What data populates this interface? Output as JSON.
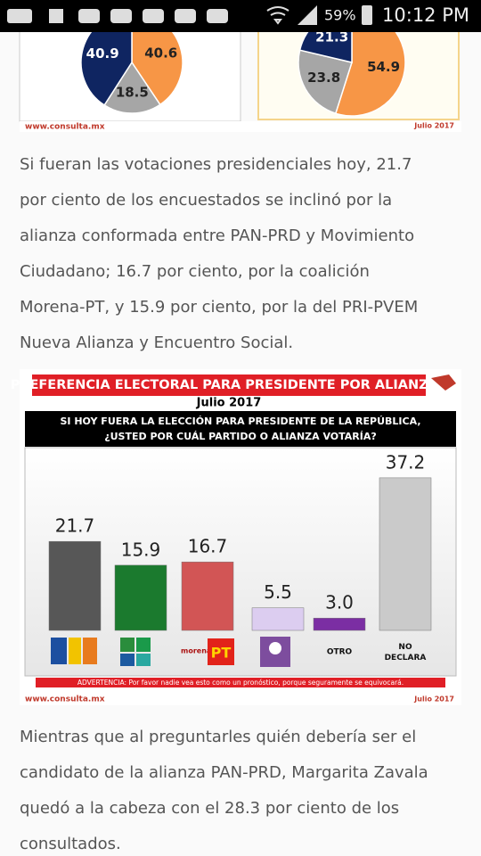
{
  "status_bar": {
    "battery": "59%",
    "time": "10:12 PM"
  },
  "top_image": {
    "pies": [
      {
        "values": [
          40.6,
          18.5,
          40.9
        ],
        "colors": [
          "#f79646",
          "#a6a6a6",
          "#0f2561"
        ]
      },
      {
        "values": [
          54.9,
          23.8,
          21.3
        ],
        "colors": [
          "#f79646",
          "#a6a6a6",
          "#0f2561"
        ]
      }
    ],
    "source": "www.consulta.mx",
    "date": "Julio 2017"
  },
  "paragraphs": [
    [
      "Si fueran las votaciones presidenciales hoy, 21.7",
      "por ciento de los encuestados se inclinó por la",
      "alianza conformada entre PAN-PRD y Movimiento",
      "Ciudadano; 16.7 por ciento, por la coalición",
      "Morena-PT, y 15.9 por ciento, por la del PRI-PVEM",
      "Nueva Alianza y Encuentro Social."
    ],
    [
      "Mientras que al preguntarles quién debería ser el",
      "candidato de la alianza PAN-PRD, Margarita Zavala",
      "quedó a la cabeza con el 28.3 por ciento de los",
      "consultados."
    ]
  ],
  "chart_data": {
    "type": "bar",
    "title": "PREFERENCIA ELECTORAL PARA PRESIDENTE POR ALIANZAS",
    "subtitle": "Julio 2017",
    "question": [
      "SI HOY FUERA LA ELECCIÓN PARA PRESIDENTE DE LA REPÚBLICA,",
      "¿USTED POR CUÁL PARTIDO O ALIANZA VOTARÍA?"
    ],
    "categories": [
      null,
      null,
      null,
      null,
      "OTRO",
      "NO DECLARA"
    ],
    "values": [
      21.7,
      15.9,
      16.7,
      5.5,
      3.0,
      37.2
    ],
    "value_labels": [
      "21.7",
      "15.9",
      "16.7",
      "5.5",
      "3.0",
      "37.2"
    ],
    "colors": [
      "#575757",
      "#1b7a2e",
      "#d25555",
      "#dccdf0",
      "#7b2ea3",
      "#cacaca"
    ],
    "warning": "ADVERTENCIA: Por favor nadie vea esto como un pronóstico, porque seguramente se equivocará.",
    "source": "www.consulta.mx",
    "date": "Julio 2017"
  }
}
